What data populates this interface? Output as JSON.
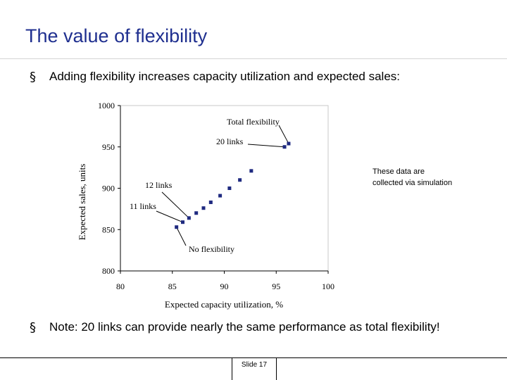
{
  "slide": {
    "title": "The value of flexibility",
    "bullet_symbol": "§",
    "bullets": [
      "Adding flexibility increases capacity utilization and expected sales:",
      "Note: 20 links can provide nearly the same performance as total flexibility!"
    ],
    "side_note": [
      "These data are",
      "collected via simulation"
    ],
    "slide_number": "Slide 17"
  },
  "chart_data": {
    "type": "scatter",
    "title": "",
    "xlabel": "Expected capacity utilization, %",
    "ylabel": "Expected sales, units",
    "xlim": [
      80,
      100
    ],
    "ylim": [
      800,
      1000
    ],
    "xticks": [
      "80",
      "85",
      "90",
      "95",
      "100"
    ],
    "yticks": [
      "800",
      "850",
      "900",
      "950",
      "1000"
    ],
    "points": [
      {
        "x": 85.4,
        "y": 853
      },
      {
        "x": 86.0,
        "y": 859
      },
      {
        "x": 86.6,
        "y": 864
      },
      {
        "x": 87.3,
        "y": 870
      },
      {
        "x": 88.0,
        "y": 876
      },
      {
        "x": 88.7,
        "y": 883
      },
      {
        "x": 89.6,
        "y": 891
      },
      {
        "x": 90.5,
        "y": 900
      },
      {
        "x": 91.5,
        "y": 910
      },
      {
        "x": 92.6,
        "y": 921
      },
      {
        "x": 95.8,
        "y": 950
      },
      {
        "x": 96.2,
        "y": 954
      }
    ],
    "annotations": [
      {
        "text": "Total flexibility",
        "x": 96.2,
        "y": 954
      },
      {
        "text": "20 links",
        "x": 95.8,
        "y": 950
      },
      {
        "text": "12 links",
        "x": 86.6,
        "y": 864
      },
      {
        "text": "11 links",
        "x": 86.0,
        "y": 859
      },
      {
        "text": "No flexibility",
        "x": 85.4,
        "y": 853
      }
    ],
    "colors": {
      "marker": "#1f2a80",
      "axis": "#000000",
      "grid": "#c8c8c8"
    }
  }
}
